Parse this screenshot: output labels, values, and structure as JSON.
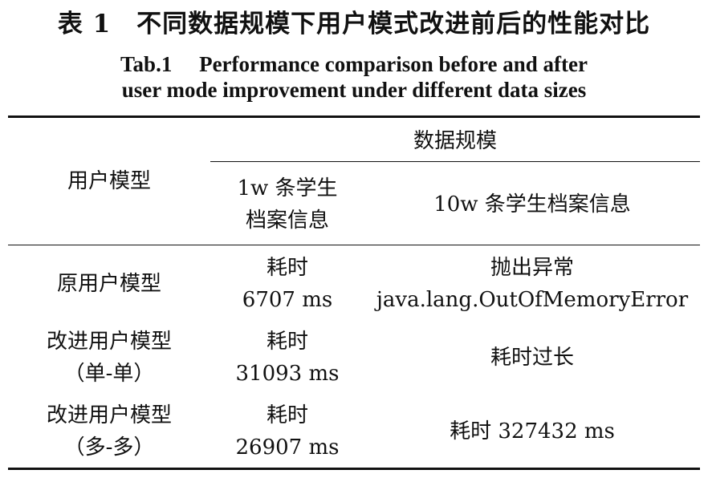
{
  "caption": {
    "title_cn": "表 1　不同数据规模下用户模式改进前后的性能对比",
    "title_en_line1": "Tab.1　 Performance comparison before and after",
    "title_en_line2": "user mode improvement under different data sizes"
  },
  "table": {
    "header": {
      "row_label": "用户模型",
      "group_label": "数据规模",
      "columns": [
        {
          "line1": "1w 条学生",
          "line2": "档案信息"
        },
        {
          "line1": "10w 条学生档案信息"
        }
      ]
    },
    "rows": [
      {
        "model": {
          "line1": "原用户模型"
        },
        "col1": {
          "line1": "耗时",
          "line2": "6707 ms"
        },
        "col2": {
          "line1": "抛出异常",
          "line2": "java.lang.OutOfMemoryError"
        }
      },
      {
        "model": {
          "line1": "改进用户模型",
          "line2": "（单-单）"
        },
        "col1": {
          "line1": "耗时",
          "line2": "31093 ms"
        },
        "col2": {
          "line1": "耗时过长"
        }
      },
      {
        "model": {
          "line1": "改进用户模型",
          "line2": "（多-多）"
        },
        "col1": {
          "line1": "耗时",
          "line2": "26907 ms"
        },
        "col2": {
          "line1": "耗时 327432 ms"
        }
      }
    ]
  }
}
